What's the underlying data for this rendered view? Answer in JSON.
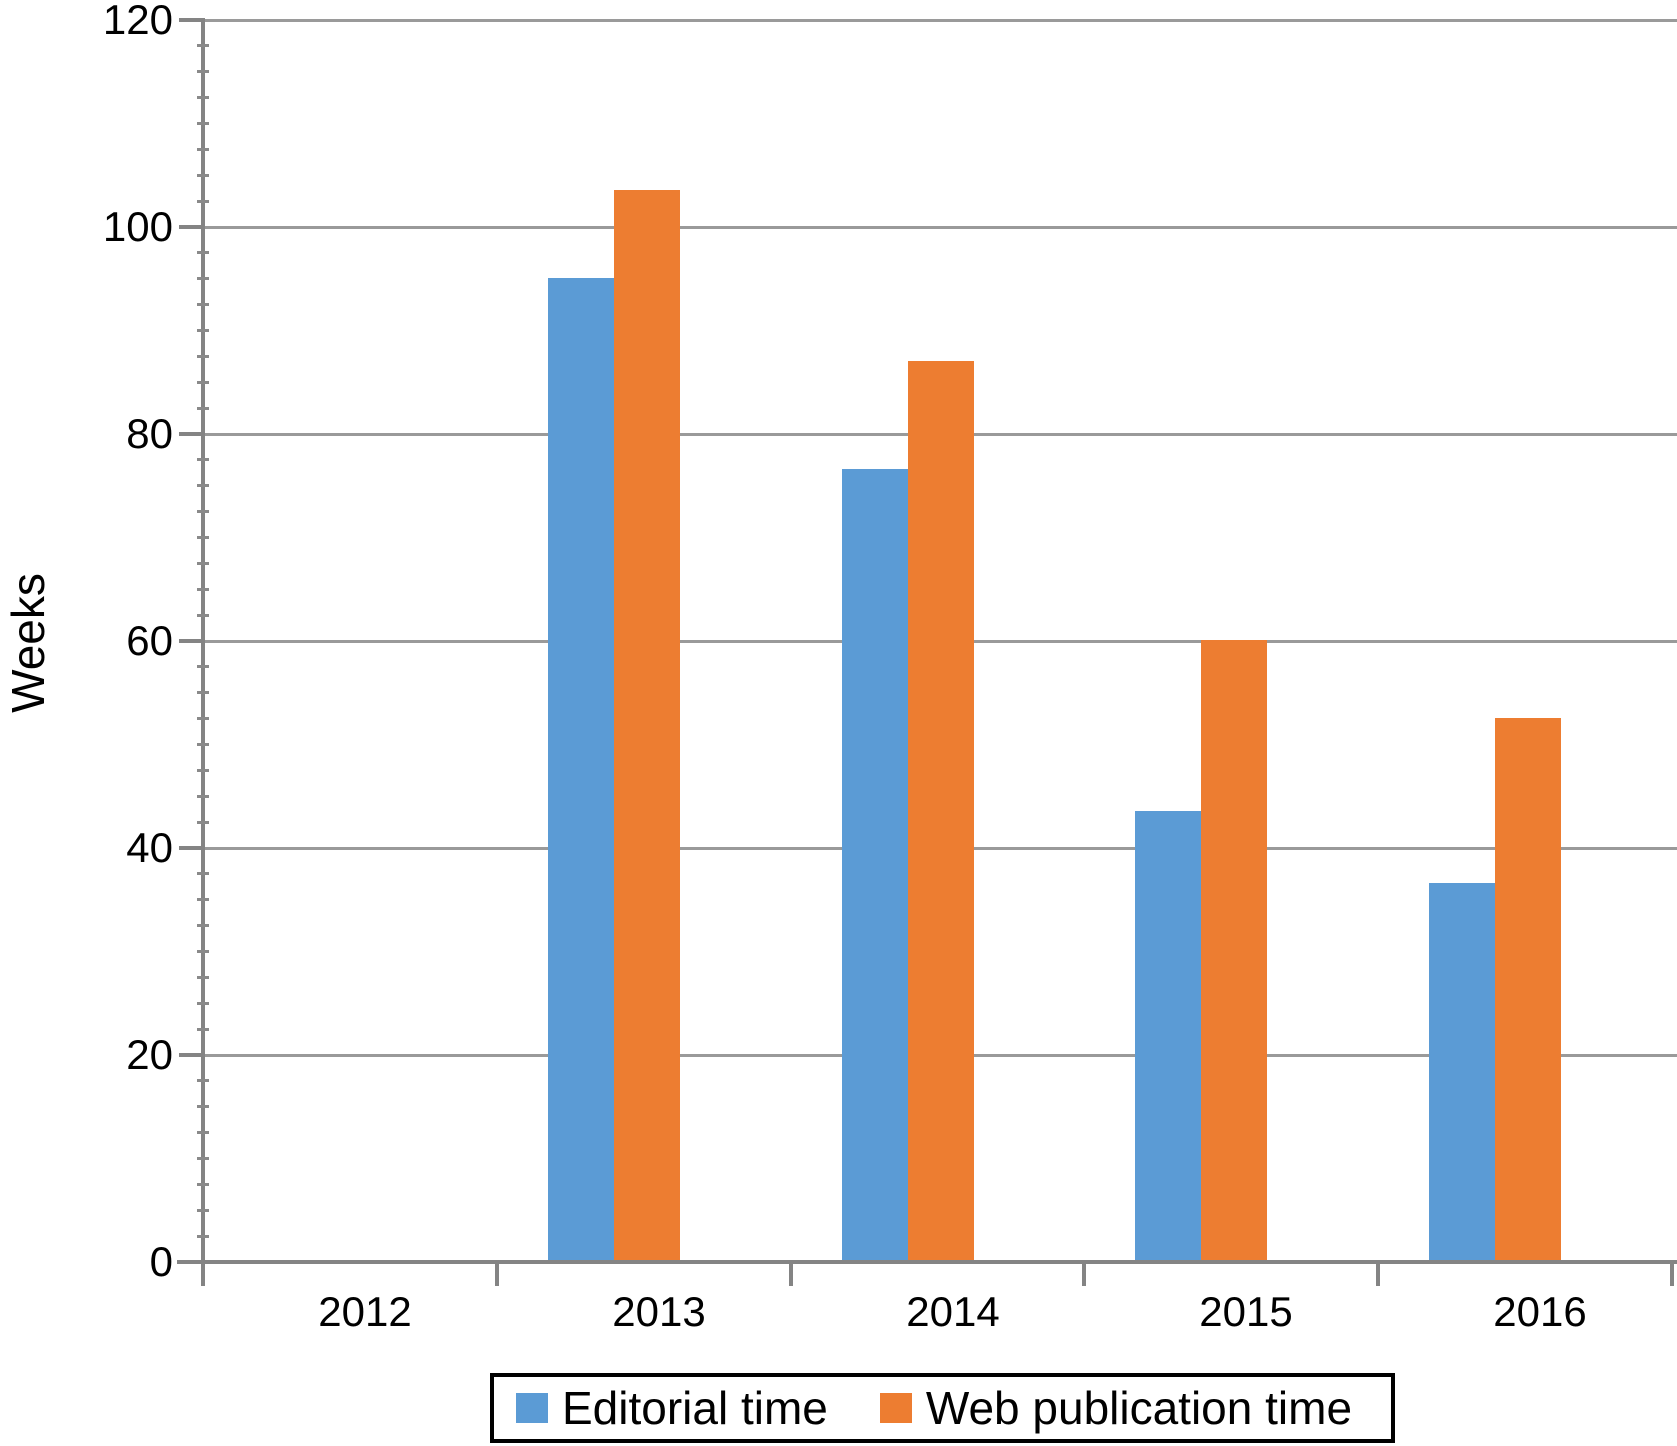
{
  "chart_data": {
    "type": "bar",
    "title": "",
    "categories": [
      "2012",
      "2013",
      "2014",
      "2015",
      "2016"
    ],
    "series": [
      {
        "name": "Editorial time",
        "color": "#5B9BD5",
        "values": [
          0,
          95,
          76.5,
          43.5,
          36.5
        ]
      },
      {
        "name": "Web publication time",
        "color": "#ED7D31",
        "values": [
          0,
          103.5,
          87,
          60,
          52.5
        ]
      }
    ],
    "xlabel": "",
    "ylabel": "Weeks",
    "ylim": [
      0,
      120
    ],
    "yticks": [
      0,
      20,
      40,
      60,
      80,
      100,
      120
    ],
    "ytick_interval": 20,
    "minor_tick_interval": 2.5,
    "grid": "horizontal",
    "legend_position": "bottom"
  },
  "axes": {
    "y_label": "Weeks",
    "y_tick_labels": [
      "0",
      "20",
      "40",
      "60",
      "80",
      "100",
      "120"
    ],
    "x_tick_labels": [
      "2012",
      "2013",
      "2014",
      "2015",
      "2016"
    ]
  },
  "legend": {
    "items": [
      {
        "label": "Editorial time",
        "color": "#5B9BD5"
      },
      {
        "label": "Web publication time",
        "color": "#ED7D31"
      }
    ]
  },
  "colors": {
    "bar_blue": "#5B9BD5",
    "bar_orange": "#ED7D31",
    "gridline": "#9a9a9a",
    "axis": "#848484",
    "minor_tick": "#8a8a8a",
    "text": "#000000",
    "background": "#ffffff",
    "legend_border": "#000000"
  }
}
